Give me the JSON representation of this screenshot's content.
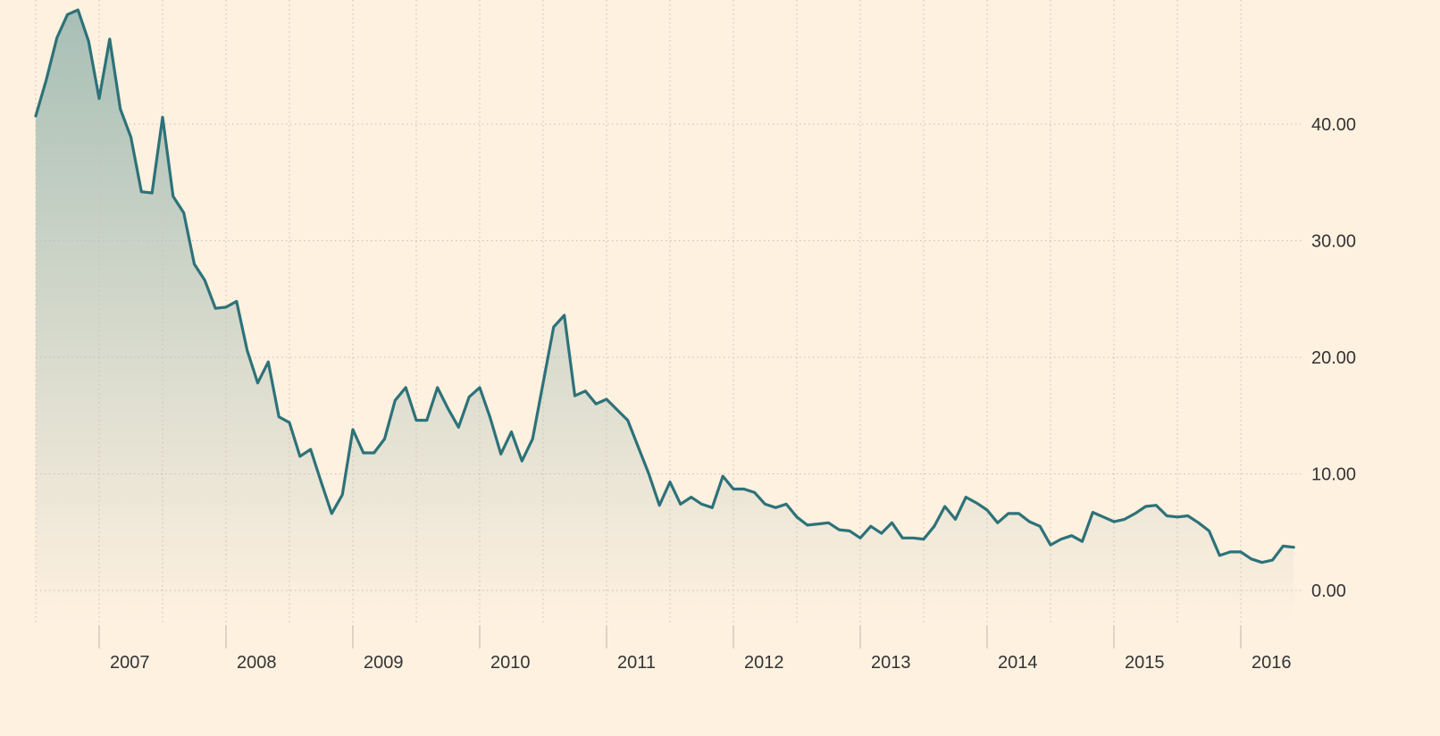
{
  "chart_data": {
    "type": "area",
    "title": "",
    "xlabel": "",
    "ylabel": "",
    "x_start": "2006-07",
    "x_range": [
      "2006-07",
      "2016-07"
    ],
    "ylim": [
      -3,
      50
    ],
    "y_ticks": [
      0,
      10,
      20,
      30,
      40
    ],
    "y_tick_labels": [
      "0.00",
      "10.00",
      "20.00",
      "30.00",
      "40.00"
    ],
    "x_tick_labels": [
      "2007",
      "2008",
      "2009",
      "2010",
      "2011",
      "2012",
      "2013",
      "2014",
      "2015",
      "2016"
    ],
    "grid": true,
    "legend": "none",
    "colors": {
      "line": "#2d7279",
      "area_top": "#a8bfb6",
      "area_bottom": "#fff1e0",
      "background": "#fff1e0"
    },
    "series": [
      {
        "values": [
          40.7,
          43.8,
          47.4,
          49.4,
          49.8,
          47.1,
          42.2,
          47.3,
          41.3,
          38.9,
          34.2,
          34.1,
          40.6,
          33.8,
          32.4,
          28.0,
          26.6,
          24.2,
          24.3,
          24.8,
          20.6,
          17.8,
          19.6,
          14.9,
          14.4,
          11.5,
          12.1,
          9.3,
          6.6,
          8.2,
          13.8,
          11.8,
          11.8,
          13.0,
          16.3,
          17.4,
          14.6,
          14.6,
          17.4,
          15.6,
          14.0,
          16.6,
          17.4,
          14.8,
          11.7,
          13.6,
          11.1,
          13.0,
          17.8,
          22.6,
          23.6,
          16.7,
          17.1,
          16.0,
          16.4,
          15.5,
          14.6,
          12.3,
          10.0,
          7.3,
          9.3,
          7.4,
          8.0,
          7.4,
          7.1,
          9.8,
          8.7,
          8.7,
          8.4,
          7.4,
          7.1,
          7.4,
          6.3,
          5.6,
          5.7,
          5.8,
          5.2,
          5.1,
          4.5,
          5.5,
          4.9,
          5.8,
          4.5,
          4.5,
          4.4,
          5.5,
          7.2,
          6.1,
          8.0,
          7.5,
          6.9,
          5.8,
          6.6,
          6.6,
          5.9,
          5.5,
          3.9,
          4.4,
          4.7,
          4.2,
          6.7,
          6.3,
          5.9,
          6.1,
          6.6,
          7.2,
          7.3,
          6.4,
          6.3,
          6.4,
          5.8,
          5.1,
          3.0,
          3.3,
          3.3,
          2.7,
          2.4,
          2.6,
          3.8,
          3.7
        ]
      }
    ]
  }
}
